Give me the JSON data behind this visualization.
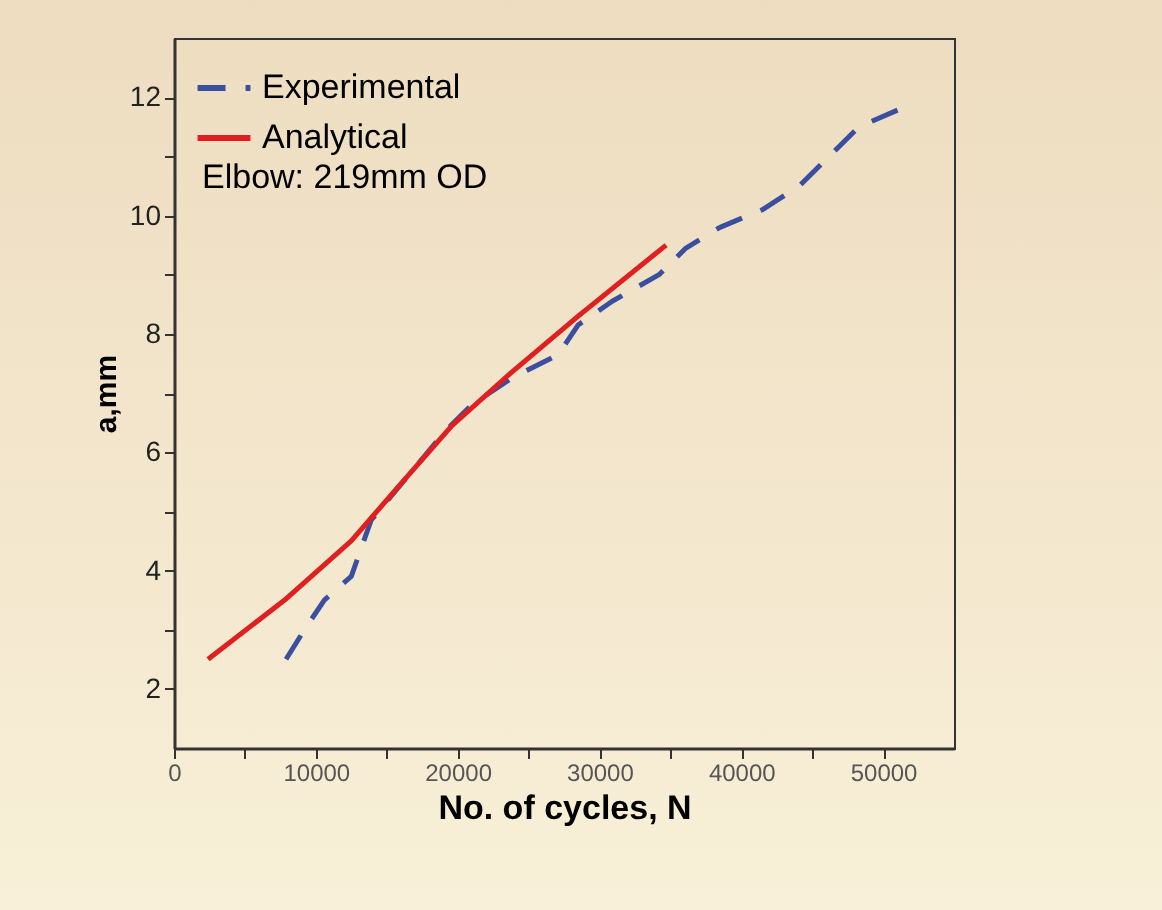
{
  "chart_data": {
    "type": "line",
    "xlabel": "No. of cycles, N",
    "ylabel": "a,mm",
    "annotations": [
      "Elbow: 219mm OD"
    ],
    "xlim": [
      0,
      55000
    ],
    "ylim": [
      1,
      13
    ],
    "xticks": [
      0,
      {
        "value": 5000,
        "label": null
      },
      10000,
      {
        "value": 15000,
        "label": null
      },
      20000,
      {
        "value": 25000,
        "label": null
      },
      30000,
      {
        "value": 35000,
        "label": null
      },
      40000,
      {
        "value": 45000,
        "label": null
      },
      50000
    ],
    "yticks": [
      2,
      {
        "value": 3,
        "label": null
      },
      4,
      {
        "value": 5,
        "label": null
      },
      6,
      {
        "value": 7,
        "label": null
      },
      8,
      {
        "value": 9,
        "label": null
      },
      10,
      {
        "value": 11,
        "label": null
      },
      12
    ],
    "grid": false,
    "legend": "top left",
    "marker": "none",
    "series": [
      {
        "name": "Experimental",
        "color": "#3a4fa0",
        "line_style": "dashed",
        "x": [
          7900,
          9200,
          10600,
          12500,
          13900,
          17200,
          19100,
          21000,
          23800,
          27100,
          28500,
          30900,
          34200,
          36100,
          38500,
          41500,
          44100,
          46200,
          48300,
          51200
        ],
        "values": [
          2.5,
          3.0,
          3.5,
          3.9,
          4.85,
          5.8,
          6.35,
          6.8,
          7.25,
          7.65,
          8.15,
          8.55,
          9.0,
          9.45,
          9.8,
          10.1,
          10.5,
          11.0,
          11.5,
          11.8
        ]
      },
      {
        "name": "Analytical",
        "color": "#e02020",
        "line_style": "solid",
        "x": [
          2400,
          7800,
          12500,
          16300,
          19600,
          23800,
          28500,
          34700
        ],
        "values": [
          2.5,
          3.5,
          4.5,
          5.55,
          6.45,
          7.35,
          8.3,
          9.5
        ]
      }
    ]
  }
}
